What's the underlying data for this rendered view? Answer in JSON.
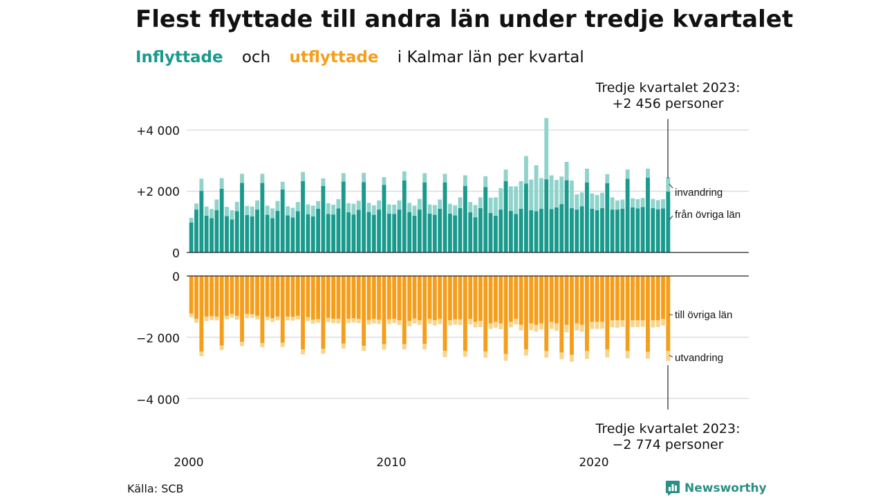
{
  "title": "Flest flyttade till andra län under tredje kvartalet",
  "subtitle": {
    "word_in": "Inflyttade",
    "word_och": "och",
    "word_out": "utflyttade",
    "rest": "i Kalmar län per kvartal"
  },
  "source": "Källa: SCB",
  "logo": {
    "text": "Newsworthy",
    "icon": "bar-chart-speech-icon"
  },
  "colors": {
    "in_domestic": "#1a9a8c",
    "in_immigration": "#8fd3cb",
    "out_domestic": "#f59e1b",
    "out_emigration": "#f8d48d",
    "grid": "#dddddd"
  },
  "labels": {
    "in_top": "invandring",
    "in_bottom": "från övriga län",
    "out_top": "till övriga län",
    "out_bottom": "utvandring"
  },
  "callouts": {
    "top_line1": "Tredje kvartalet 2023:",
    "top_line2": "+2 456 personer",
    "bottom_line1": "Tredje kvartalet 2023:",
    "bottom_line2": "−2 774 personer"
  },
  "axis": {
    "in_ticks": [
      "0",
      "+2 000",
      "+4 000"
    ],
    "out_ticks": [
      "0",
      "−2 000",
      "−4 000"
    ],
    "x_ticks": [
      "2000",
      "2010",
      "2020"
    ]
  },
  "chart_data": {
    "type": "bar",
    "stacked": true,
    "x_start": "2000 Q1",
    "x_end": "2023 Q3",
    "quarters": 95,
    "in_ylim": [
      0,
      4400
    ],
    "out_ylim": [
      -4400,
      0
    ],
    "series": [
      {
        "name": "från övriga län",
        "values": [
          980,
          1400,
          2010,
          1200,
          1120,
          1380,
          2080,
          1190,
          1080,
          1350,
          2270,
          1220,
          1180,
          1400,
          2270,
          1230,
          1120,
          1360,
          2060,
          1210,
          1140,
          1350,
          2330,
          1250,
          1180,
          1430,
          2170,
          1260,
          1240,
          1440,
          2320,
          1310,
          1240,
          1390,
          2300,
          1320,
          1230,
          1400,
          2210,
          1270,
          1260,
          1400,
          2350,
          1320,
          1200,
          1400,
          2290,
          1270,
          1230,
          1430,
          2290,
          1270,
          1210,
          1450,
          2170,
          1310,
          1150,
          1450,
          2140,
          1290,
          1200,
          1400,
          2330,
          1360,
          1260,
          1430,
          2250,
          1380,
          1350,
          1430,
          2390,
          1420,
          1470,
          1580,
          2360,
          1450,
          1400,
          1510,
          2290,
          1430,
          1380,
          1450,
          2260,
          1400,
          1400,
          1430,
          2410,
          1470,
          1440,
          1480,
          2440,
          1450,
          1410,
          1440,
          1990
        ]
      },
      {
        "name": "invandring",
        "values": [
          150,
          200,
          400,
          300,
          300,
          350,
          350,
          300,
          300,
          300,
          300,
          300,
          320,
          300,
          300,
          300,
          320,
          320,
          250,
          300,
          320,
          300,
          300,
          320,
          350,
          250,
          250,
          350,
          320,
          300,
          270,
          300,
          350,
          300,
          300,
          300,
          310,
          300,
          250,
          300,
          300,
          300,
          300,
          300,
          330,
          350,
          300,
          300,
          320,
          300,
          280,
          320,
          330,
          350,
          350,
          340,
          400,
          350,
          350,
          500,
          600,
          700,
          380,
          800,
          900,
          900,
          900,
          1000,
          1500,
          1000,
          2000,
          1100,
          900,
          900,
          600,
          900,
          500,
          450,
          450,
          500,
          500,
          500,
          300,
          400,
          300,
          300,
          300,
          300,
          300,
          300,
          300,
          300,
          300,
          300,
          466
        ]
      },
      {
        "name": "till övriga län",
        "values": [
          -1230,
          -1400,
          -2470,
          -1330,
          -1310,
          -1330,
          -2270,
          -1300,
          -1240,
          -1300,
          -2150,
          -1240,
          -1250,
          -1300,
          -2190,
          -1330,
          -1380,
          -1330,
          -2180,
          -1330,
          -1340,
          -1300,
          -2400,
          -1350,
          -1430,
          -1410,
          -2380,
          -1370,
          -1400,
          -1400,
          -2210,
          -1400,
          -1380,
          -1400,
          -2280,
          -1440,
          -1400,
          -1430,
          -2230,
          -1420,
          -1400,
          -1450,
          -2230,
          -1470,
          -1390,
          -1450,
          -2220,
          -1400,
          -1450,
          -1400,
          -2440,
          -1450,
          -1420,
          -1420,
          -2450,
          -1400,
          -1500,
          -1470,
          -2470,
          -1550,
          -1500,
          -1550,
          -2550,
          -1500,
          -1400,
          -1600,
          -2400,
          -1550,
          -1600,
          -1550,
          -2450,
          -1500,
          -1550,
          -2500,
          -1600,
          -2580,
          -1550,
          -1600,
          -2450,
          -1500,
          -1500,
          -1500,
          -2400,
          -1450,
          -1450,
          -1450,
          -2450,
          -1450,
          -1450,
          -1450,
          -2480,
          -1450,
          -1450,
          -1400,
          -2450
        ]
      },
      {
        "name": "utvandring",
        "values": [
          -120,
          -130,
          -150,
          -140,
          -130,
          -120,
          -150,
          -120,
          -120,
          -130,
          -140,
          -140,
          -120,
          -120,
          -140,
          -110,
          -120,
          -120,
          -140,
          -120,
          -120,
          -120,
          -160,
          -130,
          -130,
          -120,
          -160,
          -140,
          -140,
          -150,
          -160,
          -140,
          -140,
          -140,
          -170,
          -150,
          -150,
          -140,
          -180,
          -150,
          -140,
          -150,
          -170,
          -170,
          -160,
          -150,
          -180,
          -160,
          -170,
          -170,
          -210,
          -170,
          -170,
          -180,
          -190,
          -180,
          -180,
          -200,
          -200,
          -180,
          -190,
          -190,
          -220,
          -180,
          -180,
          -180,
          -200,
          -220,
          -220,
          -200,
          -220,
          -230,
          -240,
          -220,
          -240,
          -220,
          -230,
          -220,
          -260,
          -230,
          -230,
          -220,
          -260,
          -230,
          -240,
          -210,
          -240,
          -220,
          -220,
          -210,
          -220,
          -230,
          -220,
          -220,
          -324
        ]
      }
    ]
  }
}
